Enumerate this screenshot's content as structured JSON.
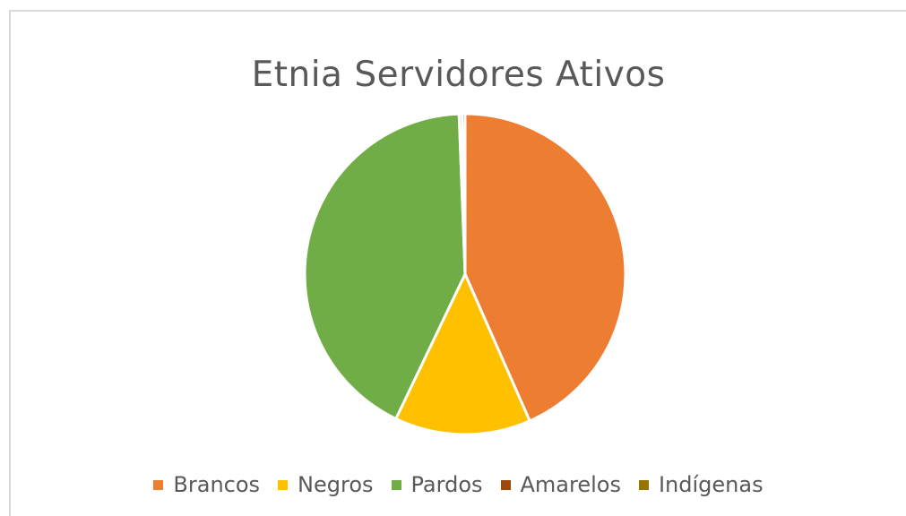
{
  "chart_data": {
    "type": "pie",
    "title": "Etnia Servidores Ativos",
    "categories": [
      "Brancos",
      "Negros",
      "Pardos",
      "Amarelos",
      "Indígenas"
    ],
    "values": [
      43.4,
      13.7,
      42.3,
      0.3,
      0.3
    ],
    "colors": [
      "#ED7D31",
      "#FFC000",
      "#70AD47",
      "#9E480E",
      "#997300"
    ],
    "legend": "bottom",
    "start_angle_deg": 0
  }
}
